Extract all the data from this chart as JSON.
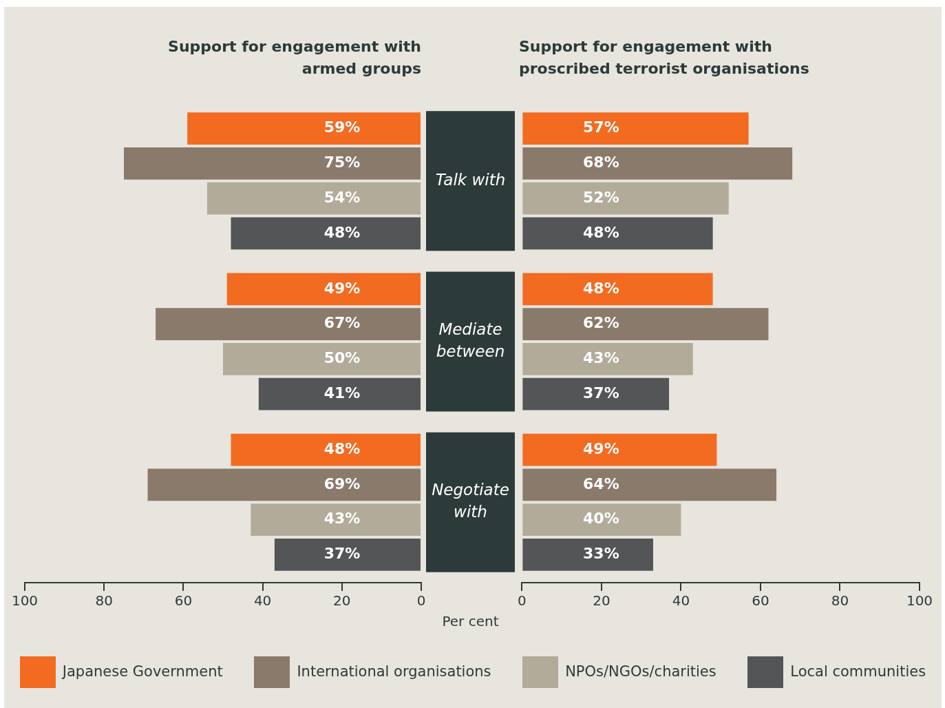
{
  "chart_data": [
    {
      "type": "bar",
      "orientation": "horizontal",
      "title": "Support for engagement with\narmed groups",
      "xlabel": "Per cent",
      "categories": [
        "Talk with",
        "Mediate between",
        "Negotiate with"
      ],
      "xlim": [
        100,
        0
      ],
      "xticks": [
        100,
        80,
        60,
        40,
        20,
        0
      ],
      "grid": false,
      "legend": "bottom",
      "series": [
        {
          "name": "Japanese Government",
          "color": "#f26b21",
          "values": [
            59,
            49,
            48
          ],
          "value_labels": [
            "59%",
            "49%",
            "48%"
          ]
        },
        {
          "name": "International organisations",
          "color": "#8a7a6c",
          "values": [
            75,
            67,
            69
          ],
          "value_labels": [
            "75%",
            "67%",
            "69%"
          ]
        },
        {
          "name": "NPOs/NGOs/charities",
          "color": "#b2ab99",
          "values": [
            54,
            50,
            43
          ],
          "value_labels": [
            "54%",
            "50%",
            "43%"
          ]
        },
        {
          "name": "Local communities",
          "color": "#545557",
          "values": [
            48,
            41,
            37
          ],
          "value_labels": [
            "48%",
            "41%",
            "37%"
          ]
        }
      ]
    },
    {
      "type": "bar",
      "orientation": "horizontal",
      "title": "Support for engagement with\nproscribed terrorist organisations",
      "categories": [
        null,
        null,
        null
      ],
      "xlim": [
        0,
        100
      ],
      "xticks": [
        0,
        20,
        40,
        60,
        80,
        100
      ],
      "grid": false,
      "tick_labels": "x",
      "series": [
        {
          "color": "#f26b21",
          "values": [
            57,
            48,
            49
          ],
          "value_labels": [
            "57%",
            "48%",
            "49%"
          ]
        },
        {
          "color": "#8a7a6c",
          "values": [
            68,
            62,
            64
          ],
          "value_labels": [
            "68%",
            "62%",
            "64%"
          ]
        },
        {
          "color": "#b2ab99",
          "values": [
            52,
            43,
            40
          ],
          "value_labels": [
            "52%",
            "43%",
            "40%"
          ]
        },
        {
          "color": "#545557",
          "values": [
            48,
            37,
            33
          ],
          "value_labels": [
            "48%",
            "37%",
            "33%"
          ]
        }
      ]
    }
  ]
}
